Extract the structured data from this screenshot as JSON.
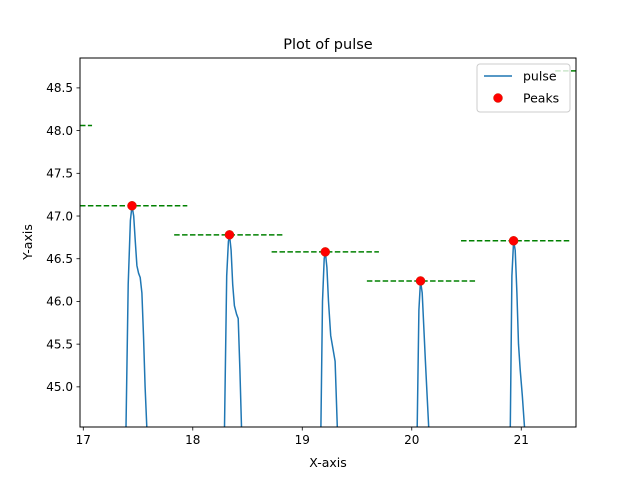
{
  "chart_data": {
    "type": "line",
    "title": "Plot of pulse",
    "xlabel": "X-axis",
    "ylabel": "Y-axis",
    "xlim": [
      16.97,
      21.5
    ],
    "ylim": [
      44.53,
      48.85
    ],
    "xticks": [
      17,
      18,
      19,
      20,
      21
    ],
    "yticks": [
      45.0,
      45.5,
      46.0,
      46.5,
      47.0,
      47.5,
      48.0,
      48.5
    ],
    "grid": false,
    "legend": {
      "placement": "top-right",
      "entries": [
        "pulse",
        "Peaks"
      ]
    },
    "colors": {
      "line": "#1f77b4",
      "peaks": "#ff0000",
      "peaks_edge": "#cc2200",
      "peak_levels": "#008000"
    },
    "series": [
      {
        "name": "pulse",
        "x": [
          17.39,
          17.41,
          17.43,
          17.445,
          17.46,
          17.475,
          17.49,
          17.505,
          17.52,
          17.535,
          17.55,
          17.565,
          17.58
        ],
        "y": [
          44.53,
          46.2,
          46.95,
          47.12,
          47.0,
          46.7,
          46.42,
          46.33,
          46.28,
          46.1,
          45.6,
          45.0,
          44.53
        ],
        "breaks": false
      },
      {
        "name": "pulse",
        "x": [
          18.29,
          18.31,
          18.325,
          18.335,
          18.35,
          18.365,
          18.38,
          18.4,
          18.415,
          18.43,
          18.445
        ],
        "y": [
          44.53,
          46.3,
          46.7,
          46.78,
          46.6,
          46.2,
          45.95,
          45.85,
          45.8,
          45.2,
          44.53
        ]
      },
      {
        "name": "pulse",
        "x": [
          19.17,
          19.185,
          19.2,
          19.21,
          19.225,
          19.24,
          19.26,
          19.28,
          19.3,
          19.32
        ],
        "y": [
          44.53,
          46.0,
          46.5,
          46.58,
          46.4,
          46.0,
          45.6,
          45.45,
          45.3,
          44.53
        ]
      },
      {
        "name": "pulse",
        "x": [
          20.05,
          20.065,
          20.08,
          20.095,
          20.11,
          20.125,
          20.14,
          20.155
        ],
        "y": [
          44.53,
          45.9,
          46.24,
          46.1,
          45.7,
          45.3,
          44.9,
          44.53
        ]
      },
      {
        "name": "pulse",
        "x": [
          20.9,
          20.915,
          20.93,
          20.945,
          20.96,
          20.975,
          20.99,
          21.01,
          21.03
        ],
        "y": [
          44.53,
          46.3,
          46.71,
          46.6,
          46.1,
          45.5,
          45.2,
          44.9,
          44.53
        ]
      }
    ],
    "peaks": {
      "name": "Peaks",
      "x": [
        17.445,
        18.335,
        19.21,
        20.08,
        20.93
      ],
      "y": [
        47.12,
        46.78,
        46.58,
        46.24,
        46.71
      ]
    },
    "peak_levels": [
      {
        "x": [
          16.97,
          17.08
        ],
        "y": 48.06
      },
      {
        "x": [
          16.97,
          17.95
        ],
        "y": 47.12
      },
      {
        "x": [
          17.83,
          18.82
        ],
        "y": 46.78
      },
      {
        "x": [
          18.72,
          19.7
        ],
        "y": 46.58
      },
      {
        "x": [
          19.59,
          20.58
        ],
        "y": 46.24
      },
      {
        "x": [
          20.45,
          21.44
        ],
        "y": 46.71
      },
      {
        "x": [
          21.31,
          21.5
        ],
        "y": 48.7
      }
    ]
  }
}
